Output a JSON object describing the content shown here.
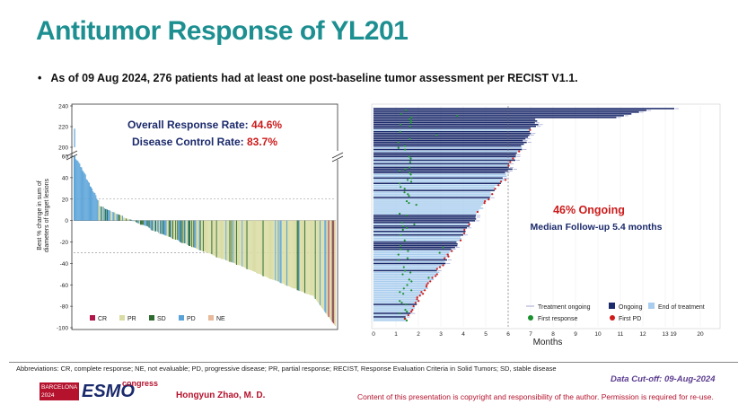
{
  "title": "Antitumor Response of YL201",
  "bullet": "As of 09 Aug 2024, 276 patients had at least one post-baseline tumor assessment per RECIST V1.1.",
  "footer": {
    "abbreviations": "Abbreviations: CR, complete response; NE, not evaluable; PD, progressive disease; PR, partial response; RECIST, Response Evaluation Criteria in Solid Tumors; SD, stable disease",
    "cutoff": "Data Cut-off: 09-Aug-2024",
    "presenter": "Hongyun Zhao, M. D.",
    "copyright": "Content of this presentation is copyright and responsibility of the author. Permission is required for re-use.",
    "logo_city": "BARCELONA",
    "logo_year": "2024",
    "logo_brand": "ESMO",
    "logo_congress": "congress"
  },
  "colors": {
    "title": "#1d8f91",
    "CR": "#b0164a",
    "PR": "#d9dca3",
    "SD": "#2e6b2e",
    "PD": "#5aa3d8",
    "NE": "#e8b99a",
    "ongoing": "#1b2a6b",
    "end_of_treatment": "#a9cdee",
    "first_response": "#1a8f2e",
    "first_pd": "#d11a1a"
  },
  "chart_data": [
    {
      "type": "bar",
      "ylabel": "Best % change in sum of diameters of target lesions",
      "yticks_upper": [
        "240",
        "220",
        "200"
      ],
      "yticks_lower": [
        "60",
        "40",
        "20",
        "0",
        "-20",
        "-40",
        "-60",
        "-80",
        "-100"
      ],
      "ylim_lower": [
        -100,
        60
      ],
      "ylim_upper": [
        200,
        240
      ],
      "reference_lines": [
        20,
        -30
      ],
      "annotations": [
        {
          "label": "Overall Response Rate: ",
          "value": "44.6%"
        },
        {
          "label": "Disease Control Rate: ",
          "value": "83.7%"
        }
      ],
      "legend": [
        "CR",
        "PR",
        "SD",
        "PD",
        "NE"
      ],
      "legend_position": "bottom-left",
      "n_patients": 276,
      "outlier_max": 218
    },
    {
      "type": "swimmer",
      "xlabel": "Months",
      "xticks": [
        "0",
        "1",
        "2",
        "3",
        "4",
        "5",
        "6",
        "7",
        "8",
        "9",
        "10",
        "11",
        "12",
        "13",
        "19",
        "20"
      ],
      "reference_line_month": 6,
      "annotations": [
        {
          "text": "46% Ongoing"
        },
        {
          "text": "Median Follow-up 5.4 months"
        }
      ],
      "legend": [
        "Treatment ongoing",
        "Ongoing",
        "End of treatment",
        "First response",
        "First PD"
      ],
      "legend_position": "bottom-right",
      "max_duration_months": 13.4
    }
  ]
}
